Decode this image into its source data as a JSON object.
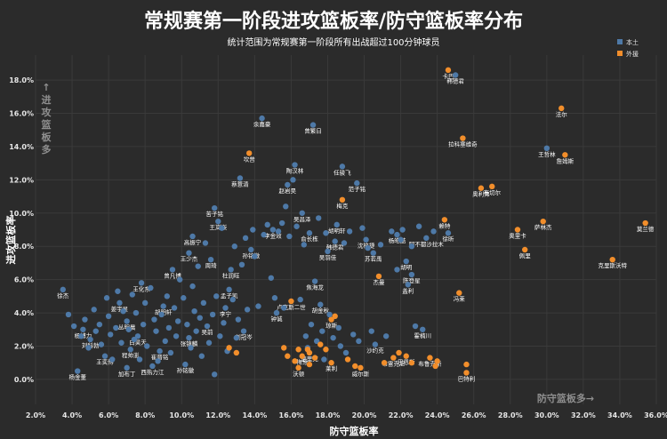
{
  "chart_data": {
    "type": "scatter",
    "title": "常规赛第一阶段进攻篮板率/防守篮板率分布",
    "subtitle": "统计范围为常规赛第一阶段所有出战超过100分钟球员",
    "xlabel": "防守篮板率",
    "ylabel": "进攻篮板率",
    "xlim": [
      2.0,
      36.0
    ],
    "ylim": [
      -1.5,
      19.5
    ],
    "x_ticks": [
      "2.0%",
      "4.0%",
      "6.0%",
      "8.0%",
      "10.0%",
      "12.0%",
      "14.0%",
      "16.0%",
      "18.0%",
      "20.0%",
      "22.0%",
      "24.0%",
      "26.0%",
      "28.0%",
      "30.0%",
      "32.0%",
      "34.0%",
      "36.0%"
    ],
    "y_ticks": [
      "0.0%",
      "2.0%",
      "4.0%",
      "6.0%",
      "8.0%",
      "10.0%",
      "12.0%",
      "14.0%",
      "16.0%",
      "18.0%"
    ],
    "annotation_y": "↑进攻篮板多",
    "annotation_x": "防守篮板多→",
    "legend": {
      "position": "top-right"
    },
    "series": [
      {
        "name": "本土",
        "color": "#4e79a7",
        "points": [
          {
            "x": 3.5,
            "y": 5.4,
            "label": "徐杰"
          },
          {
            "x": 4.3,
            "y": 0.5,
            "label": "杨金董"
          },
          {
            "x": 4.6,
            "y": 3.0,
            "label": "杨博力"
          },
          {
            "x": 5.0,
            "y": 2.4,
            "label": "刘科勃"
          },
          {
            "x": 5.8,
            "y": 1.4,
            "label": "王奕博"
          },
          {
            "x": 6.6,
            "y": 4.6,
            "label": "姜宇星"
          },
          {
            "x": 7.0,
            "y": 0.7,
            "label": "加布丁"
          },
          {
            "x": 7.0,
            "y": 3.5,
            "label": "丛明晨"
          },
          {
            "x": 7.2,
            "y": 1.8,
            "label": "程帅澎"
          },
          {
            "x": 7.6,
            "y": 2.6,
            "label": "白昊天"
          },
          {
            "x": 7.8,
            "y": 5.8,
            "label": "王化东"
          },
          {
            "x": 8.4,
            "y": 0.8,
            "label": "西热力江"
          },
          {
            "x": 8.8,
            "y": 1.7,
            "label": "崔晋铭"
          },
          {
            "x": 9.0,
            "y": 4.4,
            "label": "胡明轩"
          },
          {
            "x": 9.5,
            "y": 6.6,
            "label": "曾凡博"
          },
          {
            "x": 10.2,
            "y": 0.9,
            "label": "孙铭徽"
          },
          {
            "x": 10.4,
            "y": 2.5,
            "label": "张镇麟"
          },
          {
            "x": 10.4,
            "y": 7.6,
            "label": "王少杰"
          },
          {
            "x": 10.6,
            "y": 8.6,
            "label": "高振宁"
          },
          {
            "x": 11.4,
            "y": 3.2,
            "label": "吴前"
          },
          {
            "x": 11.6,
            "y": 7.2,
            "label": "周琦"
          },
          {
            "x": 11.8,
            "y": 10.3,
            "label": "苦子铭"
          },
          {
            "x": 12.0,
            "y": 9.5,
            "label": "王岚嵚"
          },
          {
            "x": 12.4,
            "y": 4.3,
            "label": "李宁"
          },
          {
            "x": 12.6,
            "y": 5.4,
            "label": "孟子凯"
          },
          {
            "x": 12.7,
            "y": 6.6,
            "label": "杜润旺"
          },
          {
            "x": 13.2,
            "y": 12.1,
            "label": "蔡薏清"
          },
          {
            "x": 13.4,
            "y": 2.9,
            "label": "刘冠岑"
          },
          {
            "x": 13.8,
            "y": 7.8,
            "label": "孙铭徽"
          },
          {
            "x": 14.4,
            "y": 15.7,
            "label": "余嘉豪"
          },
          {
            "x": 15.0,
            "y": 9.0,
            "label": "李金效"
          },
          {
            "x": 15.2,
            "y": 4.0,
            "label": "钟诚"
          },
          {
            "x": 15.8,
            "y": 11.7,
            "label": "赵岩昊"
          },
          {
            "x": 16.2,
            "y": 12.9,
            "label": "陶汉林"
          },
          {
            "x": 16.6,
            "y": 10.0,
            "label": "吴昌泽"
          },
          {
            "x": 17.0,
            "y": 8.8,
            "label": "俞长栋"
          },
          {
            "x": 17.2,
            "y": 15.3,
            "label": "曾繁日"
          },
          {
            "x": 17.3,
            "y": 5.9,
            "label": "焦海龙"
          },
          {
            "x": 17.6,
            "y": 4.5,
            "label": "胡金秋"
          },
          {
            "x": 18.0,
            "y": 7.7,
            "label": "吴羽佳"
          },
          {
            "x": 18.4,
            "y": 8.3,
            "label": "韩德君"
          },
          {
            "x": 18.5,
            "y": 9.3,
            "label": "胡明轩"
          },
          {
            "x": 18.8,
            "y": 12.8,
            "label": "任骏飞"
          },
          {
            "x": 19.6,
            "y": 11.8,
            "label": "范子铭"
          },
          {
            "x": 20.1,
            "y": 8.4,
            "label": "沈梓捷"
          },
          {
            "x": 20.5,
            "y": 7.6,
            "label": "苏若禹"
          },
          {
            "x": 20.6,
            "y": 2.1,
            "label": "沙约克"
          },
          {
            "x": 21.8,
            "y": 8.7,
            "label": "杨皓喆"
          },
          {
            "x": 22.3,
            "y": 7.1,
            "label": "胡明"
          },
          {
            "x": 22.4,
            "y": 5.7,
            "label": "盖利"
          },
          {
            "x": 22.6,
            "y": 6.3,
            "label": "陈登星"
          },
          {
            "x": 23.2,
            "y": 3.0,
            "label": "霍楠川"
          },
          {
            "x": 23.4,
            "y": 8.5,
            "label": "阿不都沙拉木"
          },
          {
            "x": 24.6,
            "y": 8.8,
            "label": "徐昕"
          },
          {
            "x": 25.0,
            "y": 18.3,
            "label": "韩德君"
          },
          {
            "x": 30.0,
            "y": 13.9,
            "label": "王哲林"
          }
        ]
      },
      {
        "name": "外援",
        "color": "#f28e2b",
        "points": [
          {
            "x": 13.7,
            "y": 13.6,
            "label": "坎普"
          },
          {
            "x": 16.0,
            "y": 4.7,
            "label": "卢克斯二世"
          },
          {
            "x": 16.4,
            "y": 0.7,
            "label": "沃顿"
          },
          {
            "x": 16.6,
            "y": 1.4,
            "label": "梅芽"
          },
          {
            "x": 17.0,
            "y": 1.6,
            "label": "瑟里克"
          },
          {
            "x": 18.2,
            "y": 1.0,
            "label": "莱利"
          },
          {
            "x": 18.2,
            "y": 3.6,
            "label": "琼斯"
          },
          {
            "x": 18.8,
            "y": 10.8,
            "label": "梅克"
          },
          {
            "x": 19.8,
            "y": 0.7,
            "label": "威尔斯"
          },
          {
            "x": 20.8,
            "y": 6.2,
            "label": "杰曼"
          },
          {
            "x": 21.6,
            "y": 1.3,
            "label": "布雷克尼"
          },
          {
            "x": 22.3,
            "y": 1.4,
            "label": "巴恩斯"
          },
          {
            "x": 23.6,
            "y": 1.3,
            "label": "布鲁克斯"
          },
          {
            "x": 24.4,
            "y": 9.6,
            "label": "赖特"
          },
          {
            "x": 24.6,
            "y": 18.6,
            "label": "卡巴"
          },
          {
            "x": 25.4,
            "y": 14.5,
            "label": "拉科塞维奇"
          },
          {
            "x": 25.2,
            "y": 5.2,
            "label": "冯莱"
          },
          {
            "x": 25.6,
            "y": 0.4,
            "label": "巴特利"
          },
          {
            "x": 26.4,
            "y": 11.5,
            "label": "奥利弗"
          },
          {
            "x": 27.0,
            "y": 11.6,
            "label": "布切尔"
          },
          {
            "x": 28.4,
            "y": 9.0,
            "label": "奥里卡"
          },
          {
            "x": 28.8,
            "y": 7.8,
            "label": "佩里"
          },
          {
            "x": 29.8,
            "y": 9.5,
            "label": "萨林杰"
          },
          {
            "x": 30.8,
            "y": 16.3,
            "label": "法尔"
          },
          {
            "x": 31.0,
            "y": 13.5,
            "label": "詹姆斯"
          },
          {
            "x": 33.6,
            "y": 7.2,
            "label": "克里斯沃特"
          },
          {
            "x": 35.4,
            "y": 9.4,
            "label": "莫兰德"
          }
        ]
      },
      {
        "name": "本土",
        "color": "#4e79a7",
        "points": [
          {
            "x": 3.8,
            "y": 3.9
          },
          {
            "x": 4.1,
            "y": 3.2
          },
          {
            "x": 4.5,
            "y": 2.6
          },
          {
            "x": 4.7,
            "y": 3.6
          },
          {
            "x": 4.9,
            "y": 1.9
          },
          {
            "x": 5.2,
            "y": 4.2
          },
          {
            "x": 5.3,
            "y": 2.9
          },
          {
            "x": 5.5,
            "y": 3.3
          },
          {
            "x": 5.6,
            "y": 2.1
          },
          {
            "x": 5.9,
            "y": 4.9
          },
          {
            "x": 6.0,
            "y": 3.8
          },
          {
            "x": 6.1,
            "y": 2.7
          },
          {
            "x": 6.2,
            "y": 1.2
          },
          {
            "x": 6.4,
            "y": 3.1
          },
          {
            "x": 6.5,
            "y": 5.3
          },
          {
            "x": 6.7,
            "y": 2.2
          },
          {
            "x": 6.8,
            "y": 4.1
          },
          {
            "x": 7.1,
            "y": 3.0
          },
          {
            "x": 7.3,
            "y": 5.1
          },
          {
            "x": 7.4,
            "y": 2.4
          },
          {
            "x": 7.5,
            "y": 4.0
          },
          {
            "x": 7.7,
            "y": 1.2
          },
          {
            "x": 7.9,
            "y": 3.3
          },
          {
            "x": 8.0,
            "y": 4.6
          },
          {
            "x": 8.1,
            "y": 2.0
          },
          {
            "x": 8.3,
            "y": 5.5
          },
          {
            "x": 8.5,
            "y": 3.6
          },
          {
            "x": 8.6,
            "y": 2.9
          },
          {
            "x": 8.7,
            "y": 1.1
          },
          {
            "x": 8.9,
            "y": 3.9
          },
          {
            "x": 9.1,
            "y": 2.3
          },
          {
            "x": 9.2,
            "y": 5.0
          },
          {
            "x": 9.3,
            "y": 3.1
          },
          {
            "x": 9.4,
            "y": 1.6
          },
          {
            "x": 9.6,
            "y": 4.3
          },
          {
            "x": 9.7,
            "y": 2.6
          },
          {
            "x": 9.8,
            "y": 3.5
          },
          {
            "x": 9.9,
            "y": 6.0
          },
          {
            "x": 10.1,
            "y": 4.9
          },
          {
            "x": 10.3,
            "y": 3.3
          },
          {
            "x": 10.5,
            "y": 1.9
          },
          {
            "x": 10.6,
            "y": 5.6
          },
          {
            "x": 10.7,
            "y": 4.1
          },
          {
            "x": 10.8,
            "y": 2.9
          },
          {
            "x": 10.9,
            "y": 6.8
          },
          {
            "x": 11.0,
            "y": 3.7
          },
          {
            "x": 11.1,
            "y": 1.4
          },
          {
            "x": 11.2,
            "y": 4.6
          },
          {
            "x": 11.3,
            "y": 8.2
          },
          {
            "x": 11.5,
            "y": 2.2
          },
          {
            "x": 11.7,
            "y": 3.9
          },
          {
            "x": 11.8,
            "y": 0.3
          },
          {
            "x": 11.9,
            "y": 5.0
          },
          {
            "x": 12.1,
            "y": 2.6
          },
          {
            "x": 12.2,
            "y": 9.1
          },
          {
            "x": 12.3,
            "y": 3.4
          },
          {
            "x": 12.5,
            "y": 1.7
          },
          {
            "x": 12.8,
            "y": 4.8
          },
          {
            "x": 12.9,
            "y": 8.0
          },
          {
            "x": 13.0,
            "y": 2.5
          },
          {
            "x": 13.1,
            "y": 3.6
          },
          {
            "x": 13.3,
            "y": 6.9
          },
          {
            "x": 13.5,
            "y": 8.5
          },
          {
            "x": 13.6,
            "y": 4.2
          },
          {
            "x": 13.9,
            "y": 9.0
          },
          {
            "x": 14.0,
            "y": 7.4
          },
          {
            "x": 14.2,
            "y": 4.4
          },
          {
            "x": 14.5,
            "y": 8.7
          },
          {
            "x": 14.7,
            "y": 9.3
          },
          {
            "x": 14.9,
            "y": 6.1
          },
          {
            "x": 15.1,
            "y": 4.9
          },
          {
            "x": 15.3,
            "y": 8.9
          },
          {
            "x": 15.5,
            "y": 9.4
          },
          {
            "x": 15.6,
            "y": 4.3
          },
          {
            "x": 15.7,
            "y": 10.4
          },
          {
            "x": 15.9,
            "y": 8.6
          },
          {
            "x": 16.1,
            "y": 12.0
          },
          {
            "x": 16.3,
            "y": 9.2
          },
          {
            "x": 16.5,
            "y": 4.8
          },
          {
            "x": 16.7,
            "y": 8.1
          },
          {
            "x": 16.8,
            "y": 2.6
          },
          {
            "x": 16.9,
            "y": 1.9
          },
          {
            "x": 17.1,
            "y": 3.3
          },
          {
            "x": 17.4,
            "y": 2.3
          },
          {
            "x": 17.5,
            "y": 9.7
          },
          {
            "x": 17.7,
            "y": 2.9
          },
          {
            "x": 17.8,
            "y": 1.2
          },
          {
            "x": 17.9,
            "y": 8.8
          },
          {
            "x": 18.1,
            "y": 3.9
          },
          {
            "x": 18.3,
            "y": 2.5
          },
          {
            "x": 18.6,
            "y": 3.1
          },
          {
            "x": 18.7,
            "y": 2.0
          },
          {
            "x": 18.9,
            "y": 8.2
          },
          {
            "x": 19.0,
            "y": 1.6
          },
          {
            "x": 19.2,
            "y": 8.9
          },
          {
            "x": 19.4,
            "y": 2.7
          },
          {
            "x": 19.7,
            "y": 2.3
          },
          {
            "x": 19.9,
            "y": 9.1
          },
          {
            "x": 20.2,
            "y": 7.9
          },
          {
            "x": 20.4,
            "y": 2.9
          },
          {
            "x": 20.9,
            "y": 8.1
          },
          {
            "x": 21.2,
            "y": 2.6
          },
          {
            "x": 21.5,
            "y": 8.9
          },
          {
            "x": 21.8,
            "y": 6.6
          },
          {
            "x": 22.0,
            "y": 8.4
          },
          {
            "x": 22.1,
            "y": 9.0
          },
          {
            "x": 22.6,
            "y": 8.0
          },
          {
            "x": 22.8,
            "y": 3.2
          },
          {
            "x": 23.0,
            "y": 9.2
          },
          {
            "x": 23.8,
            "y": 8.9
          }
        ]
      },
      {
        "name": "外援",
        "color": "#f28e2b",
        "points": [
          {
            "x": 16.2,
            "y": 1.1
          },
          {
            "x": 16.9,
            "y": 1.8
          },
          {
            "x": 17.3,
            "y": 1.3
          },
          {
            "x": 17.6,
            "y": 2.1
          },
          {
            "x": 17.9,
            "y": 1.8
          },
          {
            "x": 18.4,
            "y": 3.8
          },
          {
            "x": 19.1,
            "y": 1.2
          },
          {
            "x": 19.5,
            "y": 0.8
          },
          {
            "x": 21.1,
            "y": 1.0
          },
          {
            "x": 21.9,
            "y": 1.6
          },
          {
            "x": 22.6,
            "y": 1.0
          },
          {
            "x": 23.9,
            "y": 0.8
          },
          {
            "x": 24.0,
            "y": 1.1
          },
          {
            "x": 12.6,
            "y": 1.9
          },
          {
            "x": 13.0,
            "y": 1.6
          },
          {
            "x": 15.6,
            "y": 1.9
          },
          {
            "x": 15.8,
            "y": 1.4
          },
          {
            "x": 16.4,
            "y": 1.8
          },
          {
            "x": 17.0,
            "y": 0.9
          },
          {
            "x": 25.6,
            "y": 0.9
          }
        ]
      }
    ]
  }
}
